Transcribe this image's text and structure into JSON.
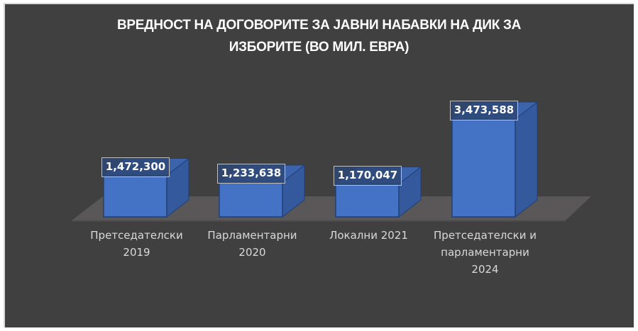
{
  "chart_data": {
    "type": "bar",
    "title": "ВРЕДНОСТ НА ДОГОВОРИТЕ ЗА ЈАВНИ НАБАВКИ НА ДИК ЗА ИЗБОРИТЕ (ВО МИЛ. ЕВРА)",
    "title_lines": [
      "ВРЕДНОСТ НА ДОГОВОРИТЕ ЗА ЈАВНИ НАБАВКИ НА ДИК ЗА",
      "ИЗБОРИТЕ (ВО МИЛ. ЕВРА)"
    ],
    "categories": [
      "Претседателски 2019",
      "Парламентарни 2020",
      "Локални 2021",
      "Претседателски и парламентарни 2024"
    ],
    "category_lines": [
      [
        "Претседателски",
        "2019"
      ],
      [
        "Парламентарни",
        "2020"
      ],
      [
        "Локални 2021"
      ],
      [
        "Претседателски и",
        "парламентарни",
        "2024"
      ]
    ],
    "values": [
      1472300,
      1233638,
      1170047,
      3473588
    ],
    "value_labels": [
      "1,472,300",
      "1,233,638",
      "1,170,047",
      "3,473,588"
    ],
    "xlabel": "",
    "ylabel": "",
    "grid": false,
    "legend": null,
    "style": "3d-column",
    "colors": {
      "background": "#404040",
      "bar_front": "#4472C4",
      "bar_side": "#34599c",
      "bar_top": "#3b64ad",
      "floor": "#595757",
      "text": "#d9d9d9",
      "title": "#ffffff"
    }
  }
}
